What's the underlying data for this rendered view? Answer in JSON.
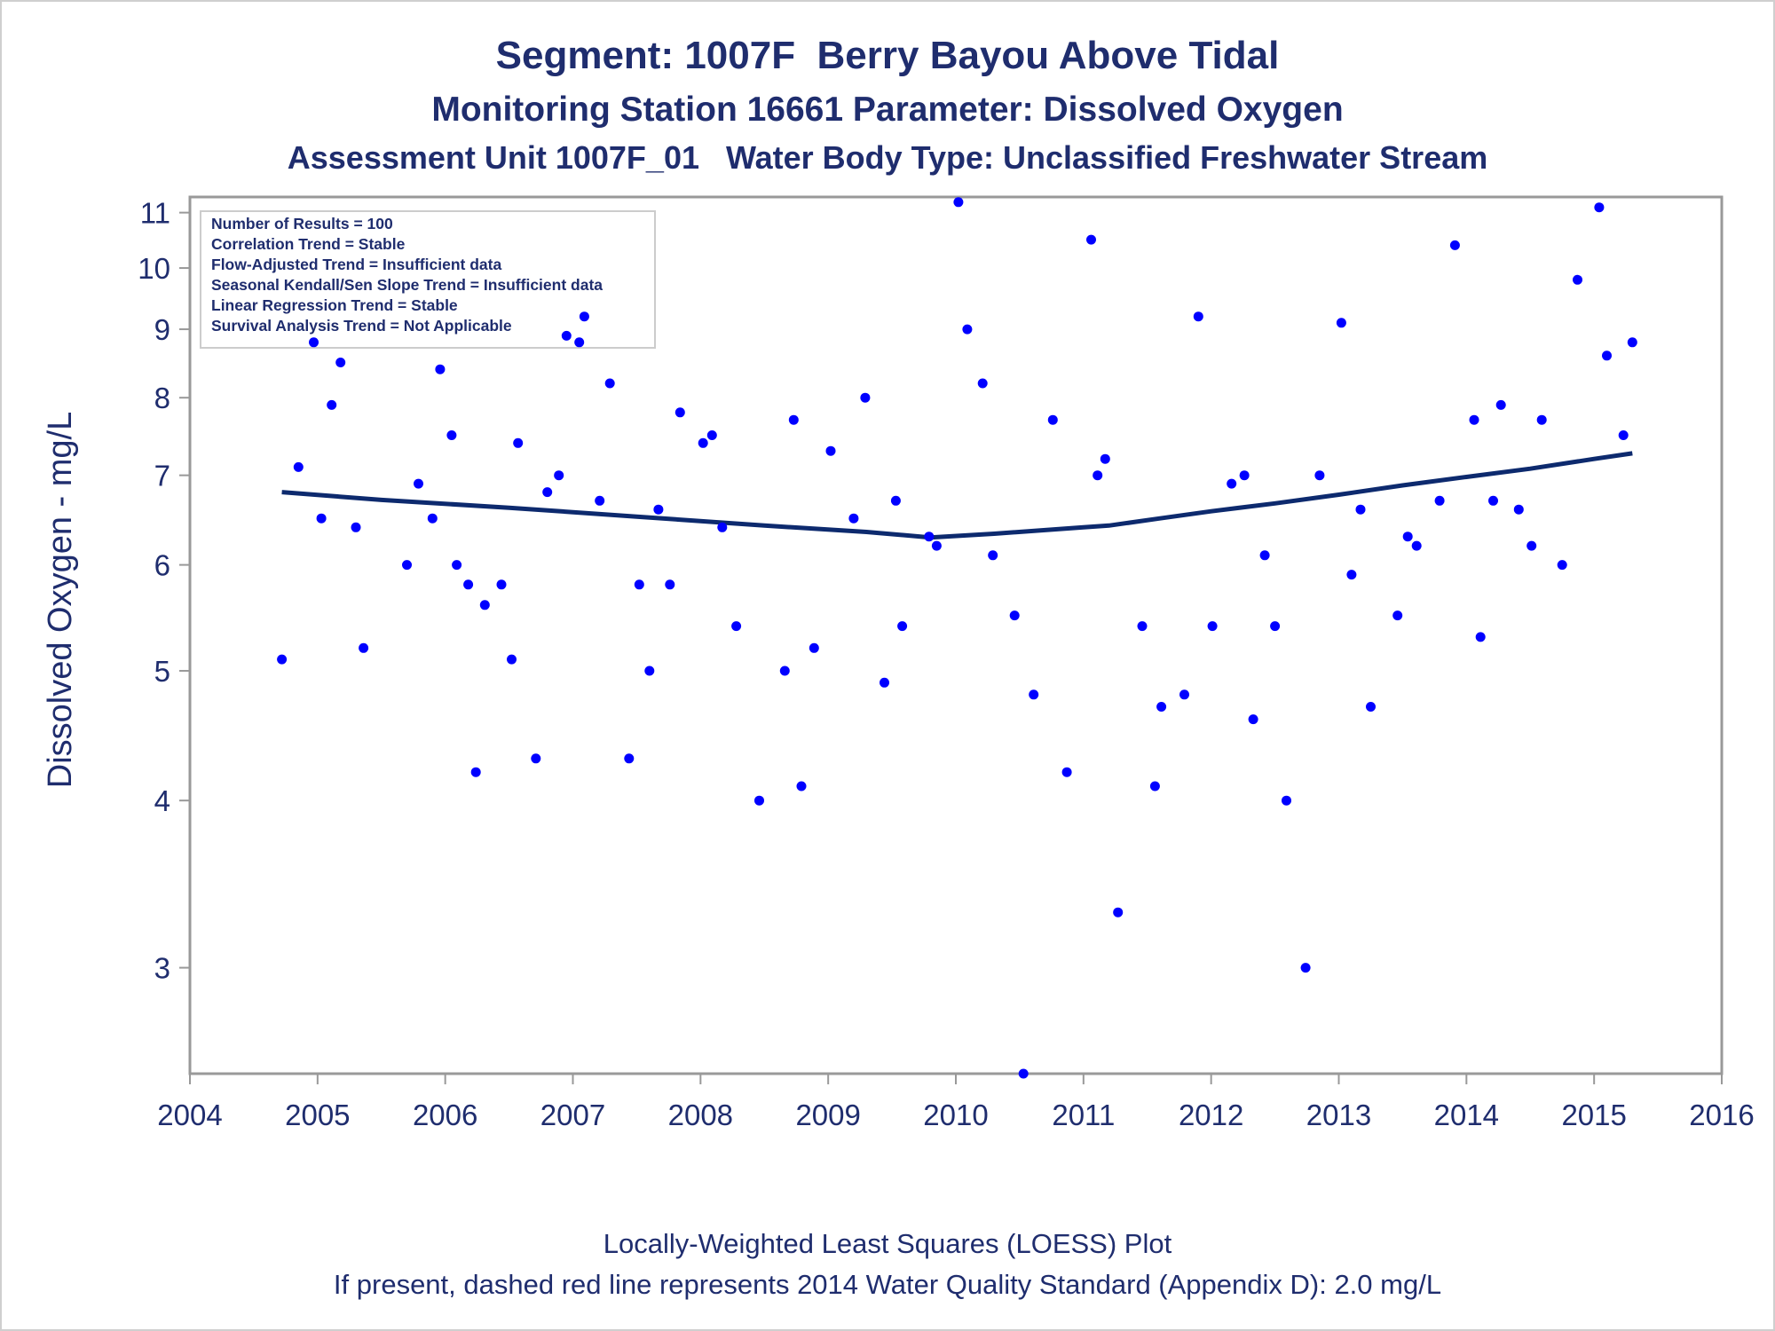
{
  "title": {
    "line1": "Segment: 1007F  Berry Bayou Above Tidal",
    "line2": "Monitoring Station 16661 Parameter: Dissolved Oxygen",
    "line3": "Assessment Unit 1007F_01   Water Body Type: Unclassified Freshwater Stream"
  },
  "footer": {
    "line1": "Locally-Weighted Least Squares (LOESS) Plot",
    "line2": "If present, dashed red line represents 2014 Water Quality Standard (Appendix D): 2.0 mg/L"
  },
  "stats_box": [
    "Number of Results = 100",
    "Correlation Trend = Stable",
    "Flow-Adjusted Trend = Insufficient data",
    "Seasonal Kendall/Sen Slope Trend = Insufficient data",
    "Linear Regression Trend = Stable",
    "Survival Analysis Trend = Not Applicable"
  ],
  "colors": {
    "points": "#0000ff",
    "trend_line": "#0d2a6e",
    "text": "#1f2d6e",
    "axis": "#999999"
  },
  "chart_data": {
    "type": "scatter",
    "ylabel": "Dissolved Oxygen - mg/L",
    "xlabel": "",
    "xlim": [
      2004,
      2016
    ],
    "ylim": [
      2.5,
      11.3
    ],
    "yscale": "log",
    "x_ticks": [
      2004,
      2005,
      2006,
      2007,
      2008,
      2009,
      2010,
      2011,
      2012,
      2013,
      2014,
      2015,
      2016
    ],
    "y_ticks": [
      3,
      4,
      5,
      6,
      7,
      8,
      9,
      10,
      11
    ],
    "grid": false,
    "points": [
      [
        2004.72,
        5.1
      ],
      [
        2004.85,
        7.1
      ],
      [
        2004.97,
        8.8
      ],
      [
        2005.03,
        6.5
      ],
      [
        2005.11,
        7.9
      ],
      [
        2005.18,
        8.5
      ],
      [
        2005.3,
        6.4
      ],
      [
        2005.36,
        5.2
      ],
      [
        2005.7,
        6.0
      ],
      [
        2005.79,
        6.9
      ],
      [
        2005.9,
        6.5
      ],
      [
        2005.96,
        8.4
      ],
      [
        2006.05,
        7.5
      ],
      [
        2006.09,
        6.0
      ],
      [
        2006.18,
        5.8
      ],
      [
        2006.24,
        4.2
      ],
      [
        2006.31,
        5.6
      ],
      [
        2006.44,
        5.8
      ],
      [
        2006.52,
        5.1
      ],
      [
        2006.57,
        7.4
      ],
      [
        2006.71,
        4.3
      ],
      [
        2006.8,
        6.8
      ],
      [
        2006.89,
        7.0
      ],
      [
        2006.95,
        8.9
      ],
      [
        2007.05,
        8.8
      ],
      [
        2007.09,
        9.2
      ],
      [
        2007.21,
        6.7
      ],
      [
        2007.29,
        8.2
      ],
      [
        2007.44,
        4.3
      ],
      [
        2007.52,
        5.8
      ],
      [
        2007.6,
        5.0
      ],
      [
        2007.67,
        6.6
      ],
      [
        2007.76,
        5.8
      ],
      [
        2007.84,
        7.8
      ],
      [
        2008.02,
        7.4
      ],
      [
        2008.09,
        7.5
      ],
      [
        2008.17,
        6.4
      ],
      [
        2008.28,
        5.4
      ],
      [
        2008.46,
        4.0
      ],
      [
        2008.66,
        5.0
      ],
      [
        2008.73,
        7.7
      ],
      [
        2008.79,
        4.1
      ],
      [
        2008.89,
        5.2
      ],
      [
        2009.02,
        7.3
      ],
      [
        2009.2,
        6.5
      ],
      [
        2009.29,
        8.0
      ],
      [
        2009.44,
        4.9
      ],
      [
        2009.53,
        6.7
      ],
      [
        2009.58,
        5.4
      ],
      [
        2009.79,
        6.3
      ],
      [
        2009.85,
        6.2
      ],
      [
        2010.02,
        11.2
      ],
      [
        2010.09,
        9.0
      ],
      [
        2010.21,
        8.2
      ],
      [
        2010.29,
        6.1
      ],
      [
        2010.46,
        5.5
      ],
      [
        2010.53,
        2.5
      ],
      [
        2010.61,
        4.8
      ],
      [
        2010.76,
        7.7
      ],
      [
        2010.87,
        4.2
      ],
      [
        2011.06,
        10.5
      ],
      [
        2011.11,
        7.0
      ],
      [
        2011.17,
        7.2
      ],
      [
        2011.27,
        3.3
      ],
      [
        2011.46,
        5.4
      ],
      [
        2011.56,
        4.1
      ],
      [
        2011.61,
        4.7
      ],
      [
        2011.79,
        4.8
      ],
      [
        2011.9,
        9.2
      ],
      [
        2012.01,
        5.4
      ],
      [
        2012.16,
        6.9
      ],
      [
        2012.26,
        7.0
      ],
      [
        2012.33,
        4.6
      ],
      [
        2012.42,
        6.1
      ],
      [
        2012.5,
        5.4
      ],
      [
        2012.59,
        4.0
      ],
      [
        2012.74,
        3.0
      ],
      [
        2012.85,
        7.0
      ],
      [
        2013.02,
        9.1
      ],
      [
        2013.1,
        5.9
      ],
      [
        2013.17,
        6.6
      ],
      [
        2013.25,
        4.7
      ],
      [
        2013.46,
        5.5
      ],
      [
        2013.54,
        6.3
      ],
      [
        2013.61,
        6.2
      ],
      [
        2013.79,
        6.7
      ],
      [
        2013.91,
        10.4
      ],
      [
        2014.06,
        7.7
      ],
      [
        2014.11,
        5.3
      ],
      [
        2014.21,
        6.7
      ],
      [
        2014.27,
        7.9
      ],
      [
        2014.41,
        6.6
      ],
      [
        2014.51,
        6.2
      ],
      [
        2014.59,
        7.7
      ],
      [
        2014.75,
        6.0
      ],
      [
        2014.87,
        9.8
      ],
      [
        2015.04,
        11.1
      ],
      [
        2015.1,
        8.6
      ],
      [
        2015.23,
        7.5
      ],
      [
        2015.3,
        8.8
      ]
    ],
    "loess_line": [
      [
        2004.72,
        6.8
      ],
      [
        2005.5,
        6.71
      ],
      [
        2006.5,
        6.62
      ],
      [
        2007.5,
        6.52
      ],
      [
        2008.5,
        6.42
      ],
      [
        2009.3,
        6.35
      ],
      [
        2009.8,
        6.29
      ],
      [
        2010.3,
        6.33
      ],
      [
        2011.0,
        6.4
      ],
      [
        2011.2,
        6.42
      ],
      [
        2011.6,
        6.5
      ],
      [
        2012.0,
        6.58
      ],
      [
        2012.5,
        6.67
      ],
      [
        2013.0,
        6.77
      ],
      [
        2013.5,
        6.88
      ],
      [
        2014.0,
        6.98
      ],
      [
        2014.5,
        7.08
      ],
      [
        2015.0,
        7.2
      ],
      [
        2015.3,
        7.27
      ]
    ]
  }
}
